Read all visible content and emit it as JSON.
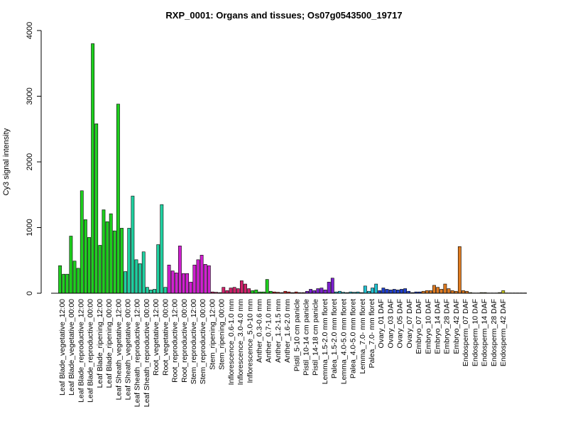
{
  "chart_data": {
    "type": "bar",
    "title": "RXP_0001: Organs and tissues; Os07g0543500_19717",
    "ylabel": "Cy3 signal intensity",
    "xlabel": "",
    "ylim": [
      0,
      4000
    ],
    "yticks": [
      0,
      1000,
      2000,
      3000,
      4000
    ],
    "grid": false,
    "legend": "none",
    "groups": [
      {
        "color": "#1fcf1f",
        "values": [
          420,
          290,
          290,
          870,
          490,
          380,
          1560,
          1120,
          850,
          3800,
          2580,
          730,
          1270,
          1090,
          1210,
          950,
          2880,
          990
        ]
      },
      {
        "color": "#20d0a0",
        "values": [
          330,
          990,
          1480,
          510,
          450,
          630,
          90,
          50,
          60,
          740,
          1350,
          90
        ]
      },
      {
        "color": "#d020d0",
        "values": [
          430,
          340,
          310,
          720,
          300,
          300,
          170,
          430,
          510,
          580,
          440,
          420
        ]
      },
      {
        "color": "#d0206a",
        "values": [
          20,
          15,
          10,
          90,
          40,
          80,
          90,
          70,
          190,
          140,
          70
        ]
      },
      {
        "color": "#1fcf1f",
        "values": [
          40,
          50,
          20,
          20,
          210,
          30
        ]
      },
      {
        "color": "#d02020",
        "values": [
          20,
          15,
          10,
          30,
          20,
          10,
          20,
          10,
          10
        ]
      },
      {
        "color": "#7b1fcf",
        "values": [
          30,
          60,
          40,
          70,
          80,
          50,
          170,
          230
        ]
      },
      {
        "color": "#20c0d0",
        "values": [
          20,
          30,
          15,
          10,
          20,
          15,
          20,
          10,
          110,
          30,
          80,
          140
        ]
      },
      {
        "color": "#1f3fcf",
        "values": [
          40,
          80,
          60,
          50,
          60,
          50,
          60,
          70,
          30,
          10,
          20,
          20
        ]
      },
      {
        "color": "#e07b20",
        "values": [
          30,
          40,
          40,
          120,
          90,
          60,
          140,
          70,
          40,
          30,
          710,
          40,
          30
        ]
      },
      {
        "color": "#c8c820",
        "values": [
          10,
          5,
          5,
          10,
          10,
          5,
          5,
          5,
          10,
          40,
          5,
          5,
          5,
          5,
          5,
          5
        ]
      }
    ],
    "category_labels": [
      "Leaf Blade_vegetative_12:00",
      "Leaf Blade_vegetative_00:00",
      "Leaf Blade_reproductive_12:00",
      "Leaf Blade_reproductive_00:00",
      "Leaf Blade_ripening_12:00",
      "Leaf Blade_ripening_00:00",
      "Leaf Sheath_vegetative_12:00",
      "Leaf Sheath_vegetative_00:00",
      "Leaf Sheath_reproductive_12:00",
      "Leaf Sheath_reproductive_00:00",
      "Root_vegetative_12:00",
      "Root_vegetative_00:00",
      "Root_reproductive_12:00",
      "Root_reproductive_00:00",
      "Stem_reproductive_12:00",
      "Stem_reproductive_00:00",
      "Stem_ripening_12:00",
      "Stem_ripening_00:00",
      "Inflorescence_0.6-1.0 mm",
      "Inflorescence_3.0-4.0 mm",
      "Inflorescence_5.0-10 mm",
      "Anther_0.3-0.6 mm",
      "Anther_0.7-1.0 mm",
      "Anther_1.2-1.5 mm",
      "Anther_1.6-2.0 mm",
      "Pistil_5-10 cm panicle",
      "Pistil_10-14 cm panicle",
      "Pistil_14-18 cm panicle",
      "Lemma_1.5-2.0 mm floret",
      "Palea_1.5-2.0 mm floret",
      "Lemma_4.0-5.0 mm floret",
      "Palea_4.0-5.0 mm floret",
      "Lemma_7.0- mm floret",
      "Palea_7.0- mm floret",
      "Ovary_01 DAF",
      "Ovary_03 DAF",
      "Ovary_05 DAF",
      "Ovary_07 DAF",
      "Embryo_07 DAF",
      "Embryo_10 DAF",
      "Embryo_14 DAF",
      "Embryo_28 DAF",
      "Embryo_42 DAF",
      "Endosperm_07 DAF",
      "Endosperm_10 DAF",
      "Endosperm_14 DAF",
      "Endosperm_28 DAF",
      "Endosperm_42 DAF"
    ]
  }
}
